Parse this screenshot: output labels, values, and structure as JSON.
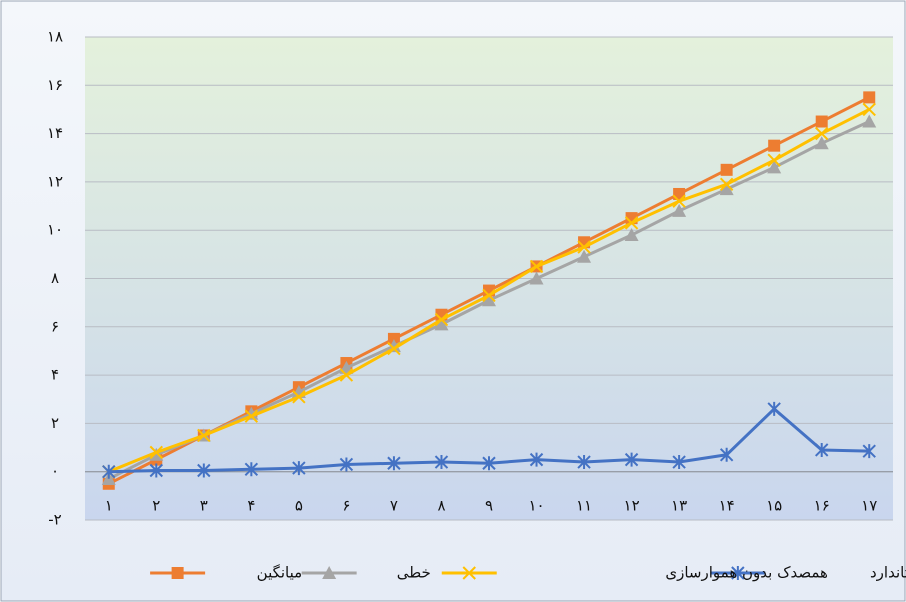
{
  "chart_data": {
    "type": "line",
    "categories": [
      "۱",
      "۲",
      "۳",
      "۴",
      "۵",
      "۶",
      "۷",
      "۸",
      "۹",
      "۱۰",
      "۱۱",
      "۱۲",
      "۱۳",
      "۱۴",
      "۱۵",
      "۱۶",
      "۱۷"
    ],
    "series": [
      {
        "name": "میانگین",
        "color": "#ed7d31",
        "marker": "square",
        "values": [
          -0.5,
          0.5,
          1.5,
          2.5,
          3.5,
          4.5,
          5.5,
          6.5,
          7.5,
          8.5,
          9.5,
          10.5,
          11.5,
          12.5,
          13.5,
          14.5,
          15.5
        ]
      },
      {
        "name": "خطی",
        "color": "#a5a5a5",
        "marker": "triangle",
        "values": [
          -0.3,
          0.7,
          1.5,
          2.4,
          3.3,
          4.3,
          5.2,
          6.1,
          7.1,
          8.0,
          8.9,
          9.8,
          10.8,
          11.7,
          12.6,
          13.6,
          14.5
        ]
      },
      {
        "name": "همصدک بدون هموارسازی",
        "color": "#ffc000",
        "marker": "x",
        "values": [
          0,
          0.8,
          1.5,
          2.3,
          3.1,
          4.0,
          5.1,
          6.3,
          7.3,
          8.5,
          9.3,
          10.3,
          11.2,
          11.9,
          12.9,
          14.0,
          15.0
        ]
      },
      {
        "name": "خطای استاندارد",
        "color": "#4472c4",
        "marker": "star",
        "values": [
          0,
          0.05,
          0.05,
          0.1,
          0.15,
          0.3,
          0.35,
          0.4,
          0.35,
          0.5,
          0.4,
          0.5,
          0.4,
          0.7,
          2.6,
          0.9,
          0.85
        ]
      }
    ],
    "ylim": [
      -2,
      18
    ],
    "yticks": [
      {
        "value": -2,
        "label": "-۲"
      },
      {
        "value": 0,
        "label": "۰"
      },
      {
        "value": 2,
        "label": "۲"
      },
      {
        "value": 4,
        "label": "۴"
      },
      {
        "value": 6,
        "label": "۶"
      },
      {
        "value": 8,
        "label": "۸"
      },
      {
        "value": 10,
        "label": "۱۰"
      },
      {
        "value": 12,
        "label": "۱۲"
      },
      {
        "value": 14,
        "label": "۱۴"
      },
      {
        "value": 16,
        "label": "۱۶"
      },
      {
        "value": 18,
        "label": "۱۸"
      }
    ],
    "grid": true,
    "legend": "bottom"
  }
}
